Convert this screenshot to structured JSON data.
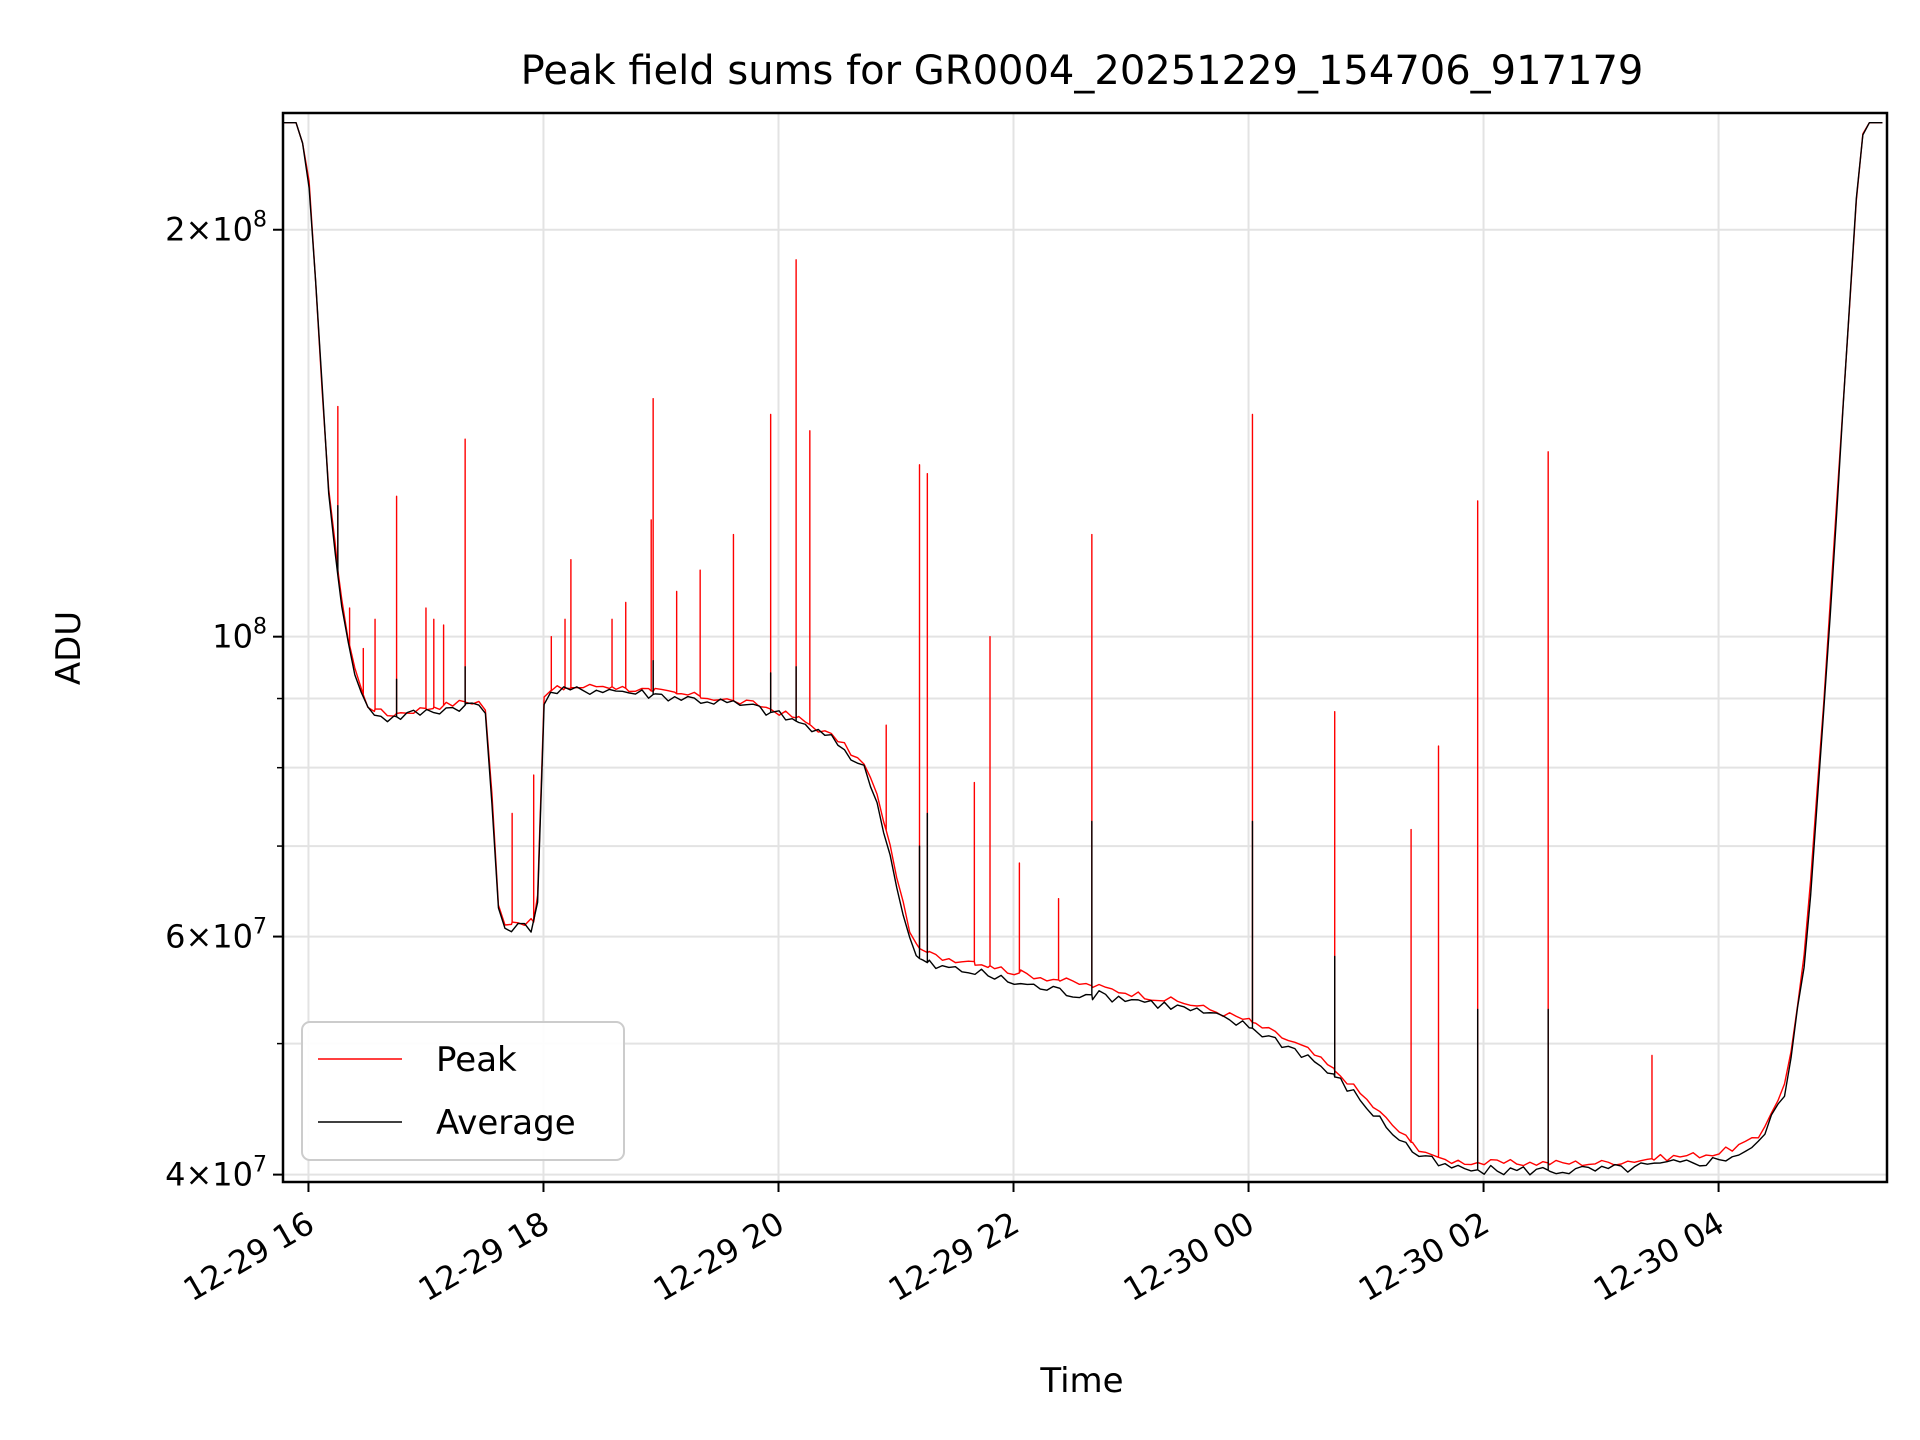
{
  "chart_data": {
    "type": "line",
    "title": "Peak field sums for GR0004_20251229_154706_917179",
    "xlabel": "Time",
    "ylabel": "ADU",
    "y_scale": "log",
    "ylim": [
      39500000,
      244000000
    ],
    "xlim": [
      "2025-12-29 15:47",
      "2025-12-30 05:26"
    ],
    "grid": true,
    "legend_position": "lower-left",
    "x_ticks": [
      {
        "label": "12-29 16",
        "value": "2025-12-29 16:00"
      },
      {
        "label": "12-29 18",
        "value": "2025-12-29 18:00"
      },
      {
        "label": "12-29 20",
        "value": "2025-12-29 20:00"
      },
      {
        "label": "12-29 22",
        "value": "2025-12-29 22:00"
      },
      {
        "label": "12-30 00",
        "value": "2025-12-30 00:00"
      },
      {
        "label": "12-30 02",
        "value": "2025-12-30 02:00"
      },
      {
        "label": "12-30 04",
        "value": "2025-12-30 04:00"
      }
    ],
    "y_ticks_major": [
      {
        "label_base": "4",
        "label_times": "×",
        "label_exp_base": "10",
        "label_exp": "7",
        "value": 40000000
      },
      {
        "label_base": "6",
        "label_times": "×",
        "label_exp_base": "10",
        "label_exp": "7",
        "value": 60000000
      },
      {
        "label_base": "",
        "label_times": "",
        "label_exp_base": "10",
        "label_exp": "8",
        "value": 100000000
      },
      {
        "label_base": "2",
        "label_times": "×",
        "label_exp_base": "10",
        "label_exp": "8",
        "value": 200000000
      }
    ],
    "y_ticks_minor": [
      50000000,
      70000000,
      80000000,
      90000000
    ],
    "series": [
      {
        "name": "Peak",
        "color": "#ff0000",
        "baseline": [
          [
            "2025-12-29 15:47",
            240000000
          ],
          [
            "2025-12-29 15:55",
            240000000
          ],
          [
            "2025-12-29 16:00",
            220000000
          ],
          [
            "2025-12-29 16:05",
            170000000
          ],
          [
            "2025-12-29 16:10",
            130000000
          ],
          [
            "2025-12-29 16:15",
            112000000
          ],
          [
            "2025-12-29 16:20",
            100000000
          ],
          [
            "2025-12-29 16:25",
            93000000
          ],
          [
            "2025-12-29 16:30",
            89000000
          ],
          [
            "2025-12-29 16:40",
            87500000
          ],
          [
            "2025-12-29 17:00",
            88500000
          ],
          [
            "2025-12-29 17:20",
            89500000
          ],
          [
            "2025-12-29 17:30",
            89500000
          ],
          [
            "2025-12-29 17:33",
            80000000
          ],
          [
            "2025-12-29 17:36",
            65000000
          ],
          [
            "2025-12-29 17:38",
            61500000
          ],
          [
            "2025-12-29 17:55",
            61500000
          ],
          [
            "2025-12-29 17:58",
            66000000
          ],
          [
            "2025-12-29 18:00",
            90000000
          ],
          [
            "2025-12-29 18:05",
            91500000
          ],
          [
            "2025-12-29 18:30",
            92000000
          ],
          [
            "2025-12-29 19:00",
            91000000
          ],
          [
            "2025-12-29 19:30",
            90000000
          ],
          [
            "2025-12-29 19:50",
            89000000
          ],
          [
            "2025-12-29 20:10",
            87000000
          ],
          [
            "2025-12-29 20:30",
            84000000
          ],
          [
            "2025-12-29 20:45",
            80000000
          ],
          [
            "2025-12-29 20:52",
            75000000
          ],
          [
            "2025-12-29 21:00",
            67000000
          ],
          [
            "2025-12-29 21:05",
            62000000
          ],
          [
            "2025-12-29 21:10",
            59000000
          ],
          [
            "2025-12-29 21:20",
            58000000
          ],
          [
            "2025-12-29 21:40",
            57500000
          ],
          [
            "2025-12-29 22:00",
            56500000
          ],
          [
            "2025-12-29 22:30",
            55500000
          ],
          [
            "2025-12-29 23:00",
            54500000
          ],
          [
            "2025-12-29 23:30",
            53500000
          ],
          [
            "2025-12-30 00:00",
            52000000
          ],
          [
            "2025-12-30 00:30",
            49500000
          ],
          [
            "2025-12-30 00:50",
            47000000
          ],
          [
            "2025-12-30 01:10",
            44000000
          ],
          [
            "2025-12-30 01:25",
            42000000
          ],
          [
            "2025-12-30 01:40",
            41000000
          ],
          [
            "2025-12-30 02:00",
            40800000
          ],
          [
            "2025-12-30 03:00",
            40800000
          ],
          [
            "2025-12-30 04:00",
            41500000
          ],
          [
            "2025-12-30 04:20",
            42500000
          ],
          [
            "2025-12-30 04:35",
            47000000
          ],
          [
            "2025-12-30 04:45",
            60000000
          ],
          [
            "2025-12-30 04:55",
            95000000
          ],
          [
            "2025-12-30 05:05",
            160000000
          ],
          [
            "2025-12-30 05:12",
            230000000
          ],
          [
            "2025-12-30 05:15",
            240000000
          ],
          [
            "2025-12-30 05:26",
            240000000
          ]
        ],
        "spikes": [
          [
            "2025-12-29 16:15",
            148000000
          ],
          [
            "2025-12-29 16:21",
            105000000
          ],
          [
            "2025-12-29 16:28",
            98000000
          ],
          [
            "2025-12-29 16:34",
            103000000
          ],
          [
            "2025-12-29 16:45",
            127000000
          ],
          [
            "2025-12-29 17:00",
            105000000
          ],
          [
            "2025-12-29 17:04",
            103000000
          ],
          [
            "2025-12-29 17:09",
            102000000
          ],
          [
            "2025-12-29 17:20",
            140000000
          ],
          [
            "2025-12-29 17:44",
            74000000
          ],
          [
            "2025-12-29 17:55",
            79000000
          ],
          [
            "2025-12-29 18:04",
            100000000
          ],
          [
            "2025-12-29 18:11",
            103000000
          ],
          [
            "2025-12-29 18:14",
            114000000
          ],
          [
            "2025-12-29 18:35",
            103000000
          ],
          [
            "2025-12-29 18:42",
            106000000
          ],
          [
            "2025-12-29 18:55",
            122000000
          ],
          [
            "2025-12-29 18:56",
            150000000
          ],
          [
            "2025-12-29 19:08",
            108000000
          ],
          [
            "2025-12-29 19:20",
            112000000
          ],
          [
            "2025-12-29 19:37",
            119000000
          ],
          [
            "2025-12-29 19:56",
            146000000
          ],
          [
            "2025-12-29 20:09",
            190000000
          ],
          [
            "2025-12-29 20:16",
            142000000
          ],
          [
            "2025-12-29 20:55",
            86000000
          ],
          [
            "2025-12-29 21:12",
            134000000
          ],
          [
            "2025-12-29 21:16",
            132000000
          ],
          [
            "2025-12-29 21:40",
            78000000
          ],
          [
            "2025-12-29 21:48",
            100000000
          ],
          [
            "2025-12-29 22:03",
            68000000
          ],
          [
            "2025-12-29 22:23",
            64000000
          ],
          [
            "2025-12-29 22:40",
            119000000
          ],
          [
            "2025-12-30 00:02",
            146000000
          ],
          [
            "2025-12-30 00:44",
            88000000
          ],
          [
            "2025-12-30 01:23",
            72000000
          ],
          [
            "2025-12-30 01:37",
            83000000
          ],
          [
            "2025-12-30 01:57",
            126000000
          ],
          [
            "2025-12-30 02:33",
            137000000
          ],
          [
            "2025-12-30 03:26",
            49000000
          ]
        ]
      },
      {
        "name": "Average",
        "color": "#000000",
        "baseline": [
          [
            "2025-12-29 15:47",
            240000000
          ],
          [
            "2025-12-29 15:55",
            240000000
          ],
          [
            "2025-12-29 16:00",
            220000000
          ],
          [
            "2025-12-29 16:05",
            170000000
          ],
          [
            "2025-12-29 16:10",
            130000000
          ],
          [
            "2025-12-29 16:15",
            111000000
          ],
          [
            "2025-12-29 16:20",
            99000000
          ],
          [
            "2025-12-29 16:25",
            92500000
          ],
          [
            "2025-12-29 16:30",
            88500000
          ],
          [
            "2025-12-29 16:40",
            87000000
          ],
          [
            "2025-12-29 17:00",
            88000000
          ],
          [
            "2025-12-29 17:20",
            89000000
          ],
          [
            "2025-12-29 17:30",
            89000000
          ],
          [
            "2025-12-29 17:33",
            79000000
          ],
          [
            "2025-12-29 17:36",
            64000000
          ],
          [
            "2025-12-29 17:38",
            61000000
          ],
          [
            "2025-12-29 17:55",
            61000000
          ],
          [
            "2025-12-29 17:58",
            65000000
          ],
          [
            "2025-12-29 18:00",
            89500000
          ],
          [
            "2025-12-29 18:05",
            91000000
          ],
          [
            "2025-12-29 18:30",
            91500000
          ],
          [
            "2025-12-29 19:00",
            90500000
          ],
          [
            "2025-12-29 19:30",
            89500000
          ],
          [
            "2025-12-29 19:50",
            88500000
          ],
          [
            "2025-12-29 20:10",
            86500000
          ],
          [
            "2025-12-29 20:30",
            83500000
          ],
          [
            "2025-12-29 20:45",
            79500000
          ],
          [
            "2025-12-29 20:52",
            74000000
          ],
          [
            "2025-12-29 21:00",
            66000000
          ],
          [
            "2025-12-29 21:05",
            61000000
          ],
          [
            "2025-12-29 21:10",
            58000000
          ],
          [
            "2025-12-29 21:20",
            57000000
          ],
          [
            "2025-12-29 21:40",
            56500000
          ],
          [
            "2025-12-29 22:00",
            55500000
          ],
          [
            "2025-12-29 22:30",
            54500000
          ],
          [
            "2025-12-29 23:00",
            54000000
          ],
          [
            "2025-12-29 23:30",
            53000000
          ],
          [
            "2025-12-30 00:00",
            51500000
          ],
          [
            "2025-12-30 00:30",
            49000000
          ],
          [
            "2025-12-30 00:50",
            46500000
          ],
          [
            "2025-12-30 01:10",
            43500000
          ],
          [
            "2025-12-30 01:25",
            41500000
          ],
          [
            "2025-12-30 01:40",
            40500000
          ],
          [
            "2025-12-30 02:00",
            40300000
          ],
          [
            "2025-12-30 03:00",
            40300000
          ],
          [
            "2025-12-30 04:00",
            41000000
          ],
          [
            "2025-12-30 04:20",
            42000000
          ],
          [
            "2025-12-30 04:35",
            46500000
          ],
          [
            "2025-12-30 04:45",
            59000000
          ],
          [
            "2025-12-30 04:55",
            94000000
          ],
          [
            "2025-12-30 05:05",
            159000000
          ],
          [
            "2025-12-30 05:12",
            229000000
          ],
          [
            "2025-12-30 05:15",
            240000000
          ],
          [
            "2025-12-30 05:26",
            240000000
          ]
        ],
        "spikes": [
          [
            "2025-12-29 16:15",
            125000000
          ],
          [
            "2025-12-29 16:45",
            93000000
          ],
          [
            "2025-12-29 17:20",
            95000000
          ],
          [
            "2025-12-29 18:56",
            96000000
          ],
          [
            "2025-12-29 19:56",
            94000000
          ],
          [
            "2025-12-29 20:09",
            95000000
          ],
          [
            "2025-12-29 21:12",
            70000000
          ],
          [
            "2025-12-29 21:16",
            74000000
          ],
          [
            "2025-12-29 22:40",
            73000000
          ],
          [
            "2025-12-30 00:02",
            73000000
          ],
          [
            "2025-12-30 00:44",
            58000000
          ],
          [
            "2025-12-30 01:57",
            53000000
          ],
          [
            "2025-12-30 02:33",
            53000000
          ]
        ]
      }
    ]
  }
}
